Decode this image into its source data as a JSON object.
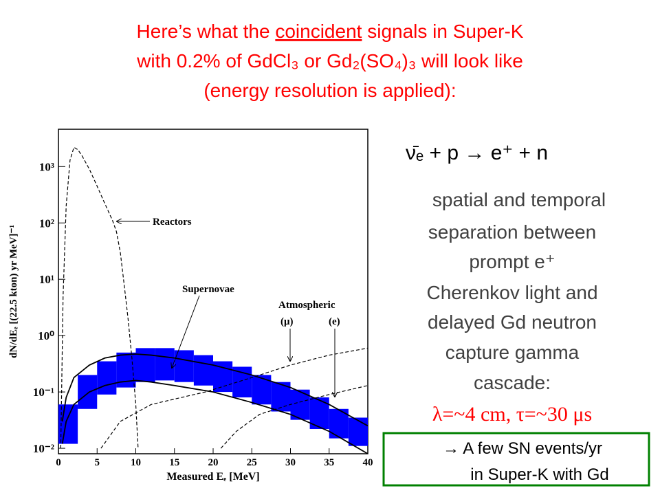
{
  "slide": {
    "title_lines": [
      [
        "Here’s what the ",
        "coincident",
        " signals in Super-K"
      ],
      [
        "with 0.2% of GdCl₃ or Gd₂(SO₄)₃ will look like"
      ],
      [
        "(energy resolution is applied):"
      ]
    ],
    "reaction": "ν̄ₑ + p  →  e⁺ + n",
    "description_lines": [
      "spatial and temporal",
      "separation between",
      "prompt e⁺",
      "Cherenkov light and",
      "delayed Gd neutron",
      "capture gamma",
      "cascade:"
    ],
    "scales": "λ=~4 cm, τ=~30 μs",
    "conclusion_lines": [
      "→ A few SN events/yr",
      "in Super-K with Gd"
    ]
  },
  "chart_data": {
    "type": "line",
    "log_y": true,
    "x_label": "Measured Eₑ [MeV]",
    "y_label": "dN/dEₑ [(22.5 kton) yr MeV]⁻¹",
    "xlim": [
      0,
      40
    ],
    "ylim": [
      0.008,
      4600
    ],
    "xticks": [
      0,
      5,
      10,
      15,
      20,
      25,
      30,
      35,
      40
    ],
    "yticks": [
      {
        "value": 0.01,
        "label": "10⁻²"
      },
      {
        "value": 0.1,
        "label": "10⁻¹"
      },
      {
        "value": 1,
        "label": "10⁰"
      },
      {
        "value": 10,
        "label": "10¹"
      },
      {
        "value": 100,
        "label": "10²"
      },
      {
        "value": 1000,
        "label": "10³"
      }
    ],
    "band": {
      "color": "#0000ff",
      "bins": [
        0,
        2.5,
        5,
        7.5,
        10,
        12.5,
        15,
        17.5,
        20,
        22.5,
        25,
        27.5,
        30,
        32.5,
        35,
        37.5,
        40
      ],
      "low": [
        0.012,
        0.05,
        0.09,
        0.12,
        0.15,
        0.16,
        0.15,
        0.13,
        0.1,
        0.08,
        0.06,
        0.045,
        0.032,
        0.022,
        0.015,
        0.011
      ],
      "high": [
        0.06,
        0.2,
        0.35,
        0.5,
        0.6,
        0.6,
        0.55,
        0.45,
        0.35,
        0.28,
        0.2,
        0.15,
        0.11,
        0.08,
        0.05,
        0.035
      ]
    },
    "series": [
      {
        "color": "#000000",
        "dashed": true,
        "x": [
          0.3,
          0.6,
          1,
          1.5,
          2,
          2.5,
          3,
          4,
          5,
          6,
          7,
          7.5,
          8,
          8.5,
          9,
          9.5,
          10,
          10.3
        ],
        "values": [
          0.01,
          5,
          200,
          1300,
          2200,
          2000,
          1600,
          900,
          450,
          220,
          110,
          70,
          30,
          8,
          2,
          0.4,
          0.06,
          0.01
        ]
      },
      {
        "color": "#000000",
        "dashed": false,
        "x": [
          0.5,
          1,
          2,
          4,
          6,
          8,
          10,
          12,
          15,
          20,
          25,
          30,
          35,
          40
        ],
        "values": [
          0.03,
          0.08,
          0.18,
          0.3,
          0.4,
          0.45,
          0.47,
          0.45,
          0.4,
          0.3,
          0.2,
          0.12,
          0.06,
          0.025
        ]
      },
      {
        "color": "#000000",
        "dashed": false,
        "x": [
          0.5,
          1,
          2,
          4,
          6,
          8,
          10,
          12,
          15,
          20,
          25,
          30,
          35,
          40
        ],
        "values": [
          0.012,
          0.03,
          0.06,
          0.1,
          0.13,
          0.15,
          0.16,
          0.15,
          0.13,
          0.1,
          0.065,
          0.04,
          0.02,
          0.008
        ]
      },
      {
        "color": "#000000",
        "dashed": true,
        "x": [
          5.5,
          8,
          12,
          19,
          25,
          30,
          35,
          40
        ],
        "values": [
          0.01,
          0.03,
          0.06,
          0.1,
          0.18,
          0.3,
          0.45,
          0.6
        ]
      },
      {
        "color": "#000000",
        "dashed": true,
        "x": [
          21,
          23,
          26,
          30,
          35,
          40
        ],
        "values": [
          0.01,
          0.02,
          0.04,
          0.06,
          0.09,
          0.13
        ]
      }
    ],
    "annotations": [
      "Reactors",
      "Supernovae",
      "Atmospheric",
      "(μ)",
      "(e)"
    ]
  }
}
